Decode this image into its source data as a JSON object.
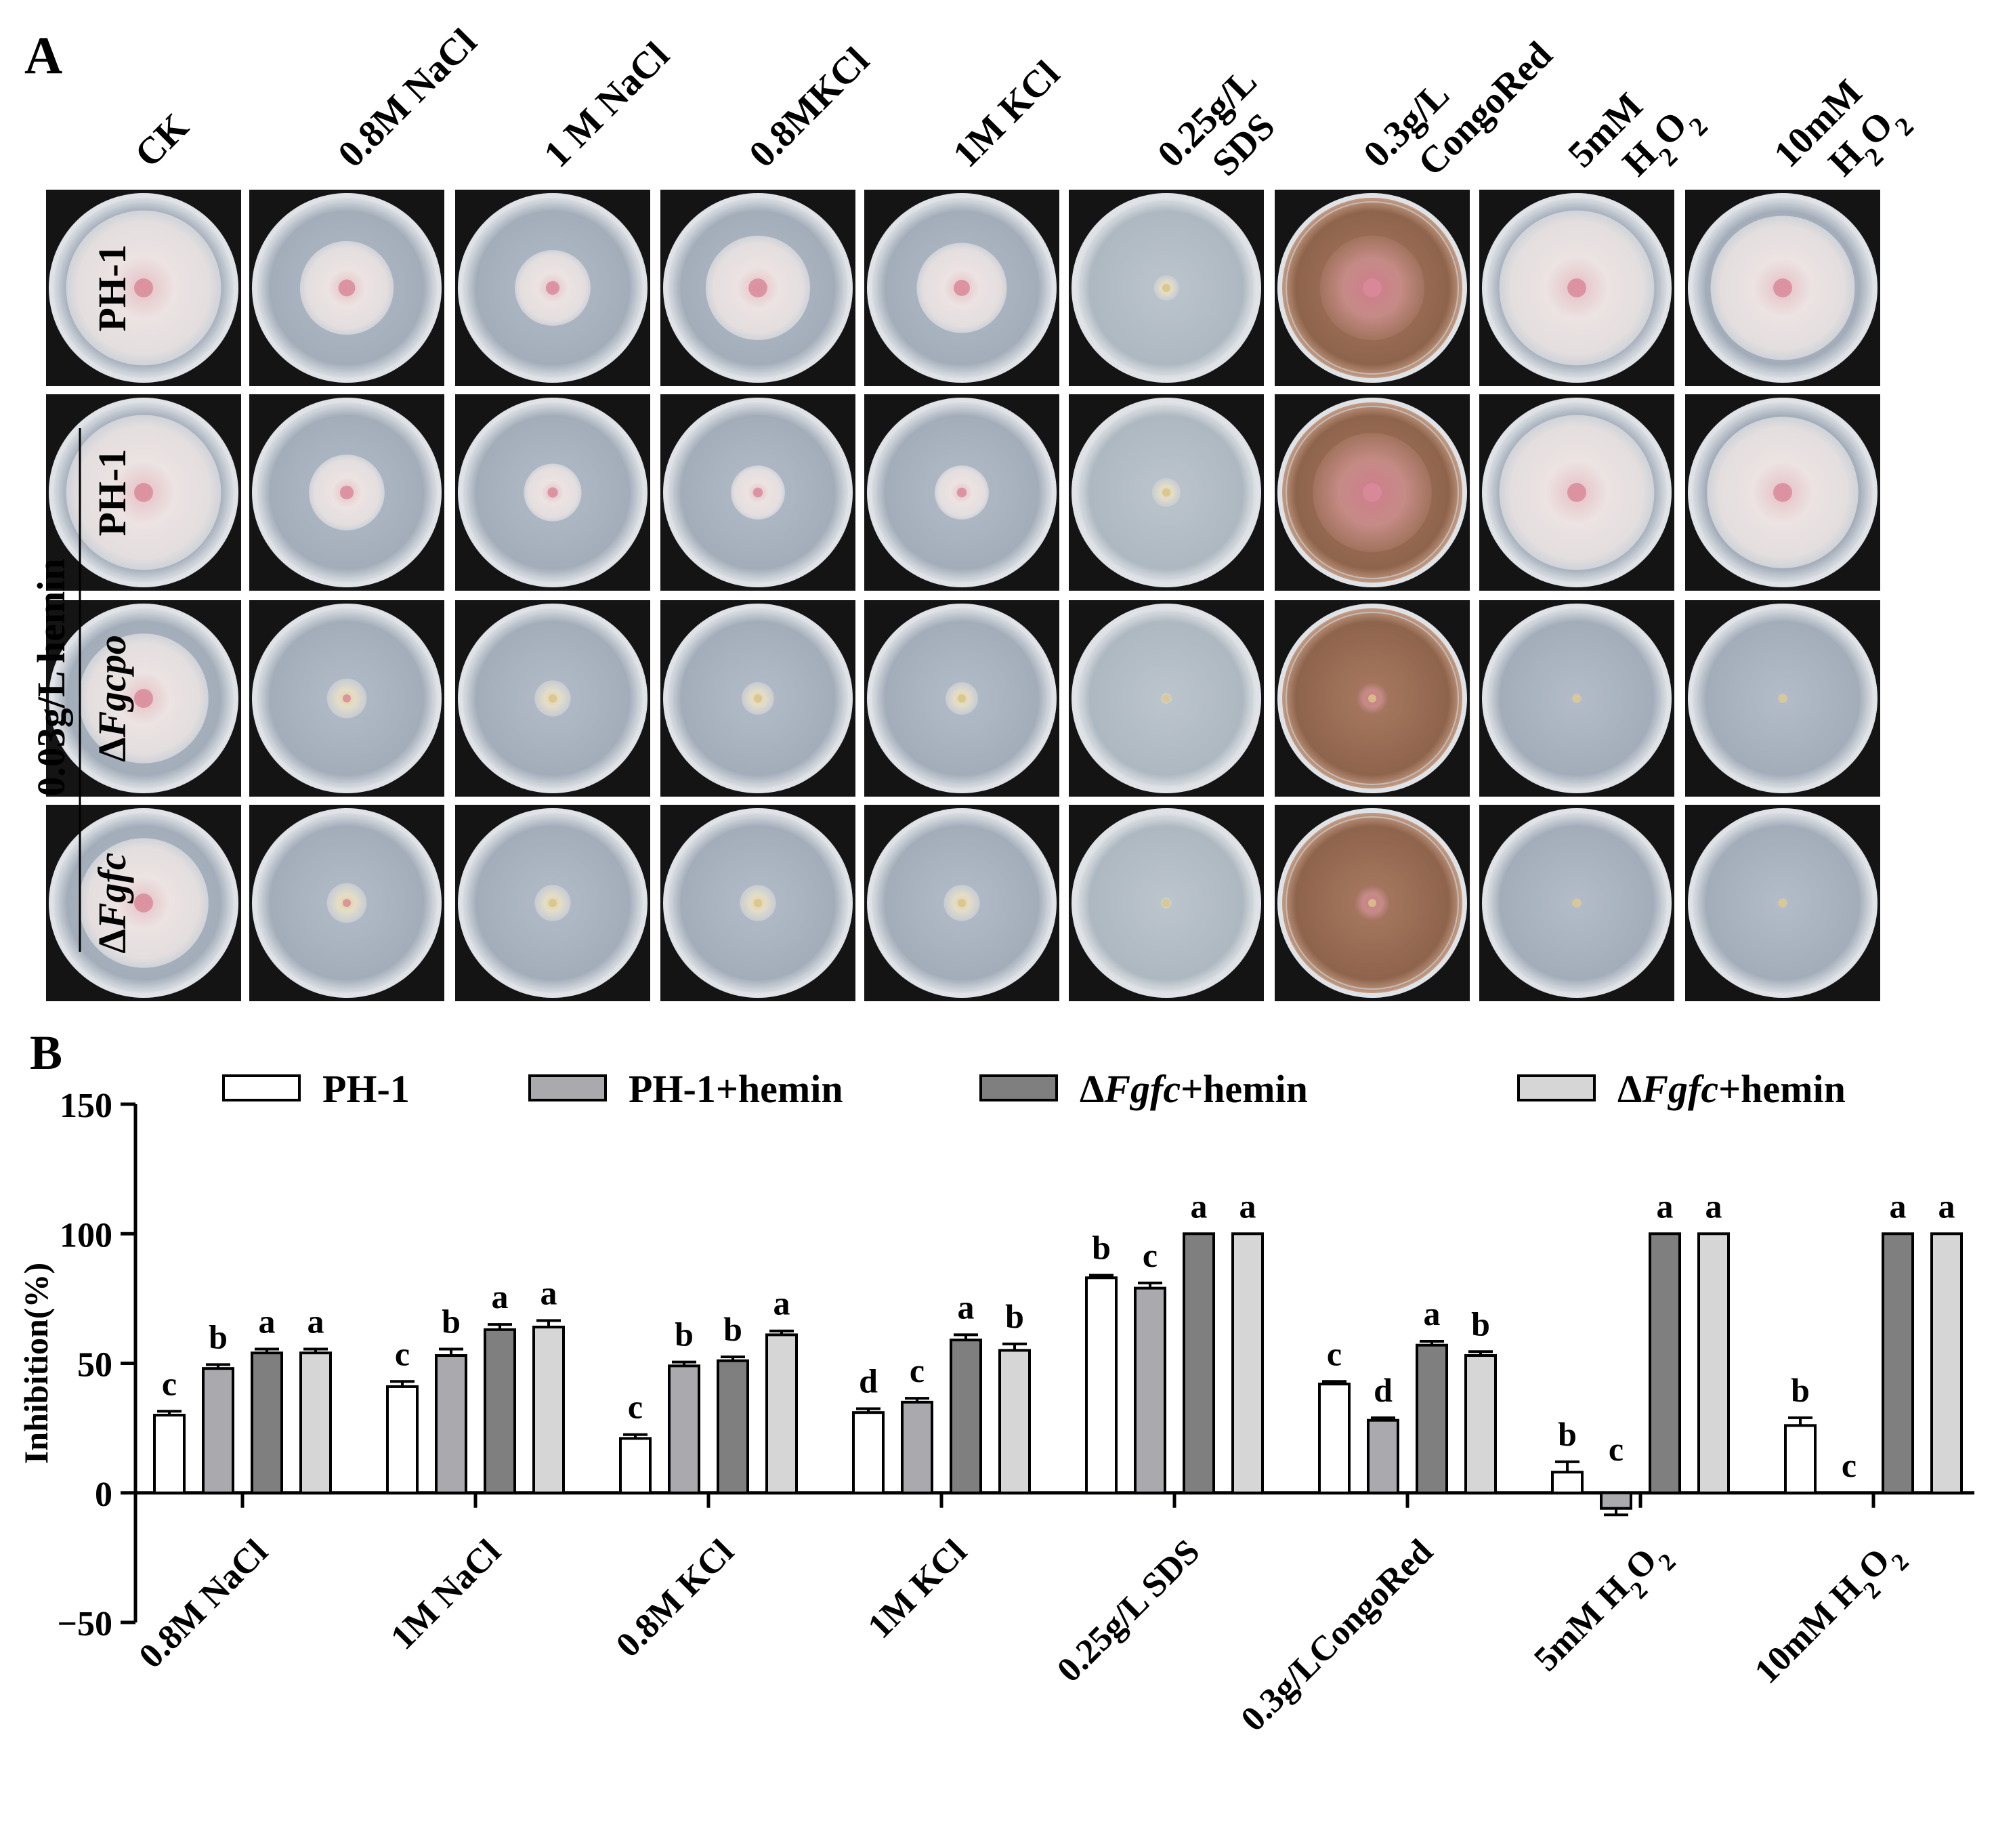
{
  "panel_a": {
    "label": "A",
    "column_headers": [
      {
        "lines": [
          "CK"
        ]
      },
      {
        "lines": [
          "0.8M NaCl"
        ]
      },
      {
        "lines": [
          "1 M NaCl"
        ]
      },
      {
        "lines": [
          "0.8MKCl"
        ]
      },
      {
        "lines": [
          "1M KCl"
        ]
      },
      {
        "lines": [
          "0.25g/L",
          "SDS"
        ]
      },
      {
        "lines": [
          "0.3g/L",
          "CongoRed"
        ]
      },
      {
        "lines": [
          "5mM",
          "H2O2"
        ]
      },
      {
        "lines": [
          "10mM",
          "H2O2"
        ]
      }
    ],
    "row_labels": [
      "PH-1",
      "PH-1",
      "ΔFgcpo",
      "ΔFgfc"
    ],
    "group_label": "0.03g/L hemin",
    "agar_colors": {
      "normal": "#a8b2bf",
      "congo_red": "#9a6e55",
      "sds": "#b6c0c9"
    },
    "colony_colors": {
      "fluffy": "#e7dcdc",
      "center": "#d98a9a",
      "small_center": "#d9c48a"
    },
    "colony_relative_sizes": [
      [
        0.86,
        0.52,
        0.42,
        0.58,
        0.5,
        0.14,
        0.58,
        0.86,
        0.8
      ],
      [
        0.86,
        0.42,
        0.32,
        0.3,
        0.3,
        0.16,
        0.66,
        0.86,
        0.84
      ],
      [
        0.72,
        0.22,
        0.2,
        0.18,
        0.18,
        0.06,
        0.18,
        0.05,
        0.05
      ],
      [
        0.72,
        0.22,
        0.2,
        0.2,
        0.2,
        0.06,
        0.2,
        0.05,
        0.05
      ]
    ]
  },
  "panel_b": {
    "label": "B",
    "legend": [
      {
        "prefix": "",
        "italic": "",
        "suffix": "PH-1"
      },
      {
        "prefix": "",
        "italic": "",
        "suffix": "PH-1+hemin"
      },
      {
        "prefix": "Δ",
        "italic": "Fgfc",
        "suffix": "+hemin"
      },
      {
        "prefix": "Δ",
        "italic": "Fgfc",
        "suffix": "+hemin"
      }
    ]
  },
  "chart_data": {
    "type": "bar",
    "ylabel": "Inhibition(%)",
    "ylim": [
      -50,
      150
    ],
    "yticks": [
      -50,
      0,
      50,
      100,
      150
    ],
    "categories": [
      "0.8M NaCl",
      "1M NaCl",
      "0.8M KCl",
      "1M KCl",
      "0.25g/L SDS",
      "0.3g/LCongoRed",
      "5mM H2O2",
      "10mM H2O2"
    ],
    "series": [
      {
        "name": "PH-1",
        "color": "#ffffff",
        "values": [
          30,
          41,
          21,
          31,
          83,
          42,
          8,
          26
        ],
        "errors": [
          1.5,
          2,
          1.5,
          1.5,
          1,
          1,
          4,
          3
        ],
        "letters": [
          "c",
          "c",
          "c",
          "d",
          "b",
          "c",
          "b",
          "b"
        ]
      },
      {
        "name": "PH-1+hemin",
        "color": "#a9a9ae",
        "values": [
          48,
          53,
          49,
          35,
          79,
          28,
          -6,
          0
        ],
        "errors": [
          1.5,
          2.5,
          1.5,
          1.5,
          2,
          1,
          2.5,
          0
        ],
        "letters": [
          "b",
          "b",
          "b",
          "c",
          "c",
          "d",
          "c",
          "c"
        ]
      },
      {
        "name": "ΔFgfc+hemin",
        "color": "#7f7f7f",
        "values": [
          54,
          63,
          51,
          59,
          100,
          57,
          100,
          100
        ],
        "errors": [
          1.5,
          2,
          1.5,
          2,
          0,
          1.5,
          0,
          0
        ],
        "letters": [
          "a",
          "a",
          "b",
          "a",
          "a",
          "a",
          "a",
          "a"
        ]
      },
      {
        "name": "ΔFgfc+hemin",
        "color": "#d6d6d6",
        "values": [
          54,
          64,
          61,
          55,
          100,
          53,
          100,
          100
        ],
        "errors": [
          1.5,
          2.5,
          1.5,
          2.5,
          0,
          1.5,
          0,
          0
        ],
        "letters": [
          "a",
          "a",
          "a",
          "b",
          "a",
          "b",
          "a",
          "a"
        ]
      }
    ],
    "grid": false,
    "legend_position": "top"
  }
}
